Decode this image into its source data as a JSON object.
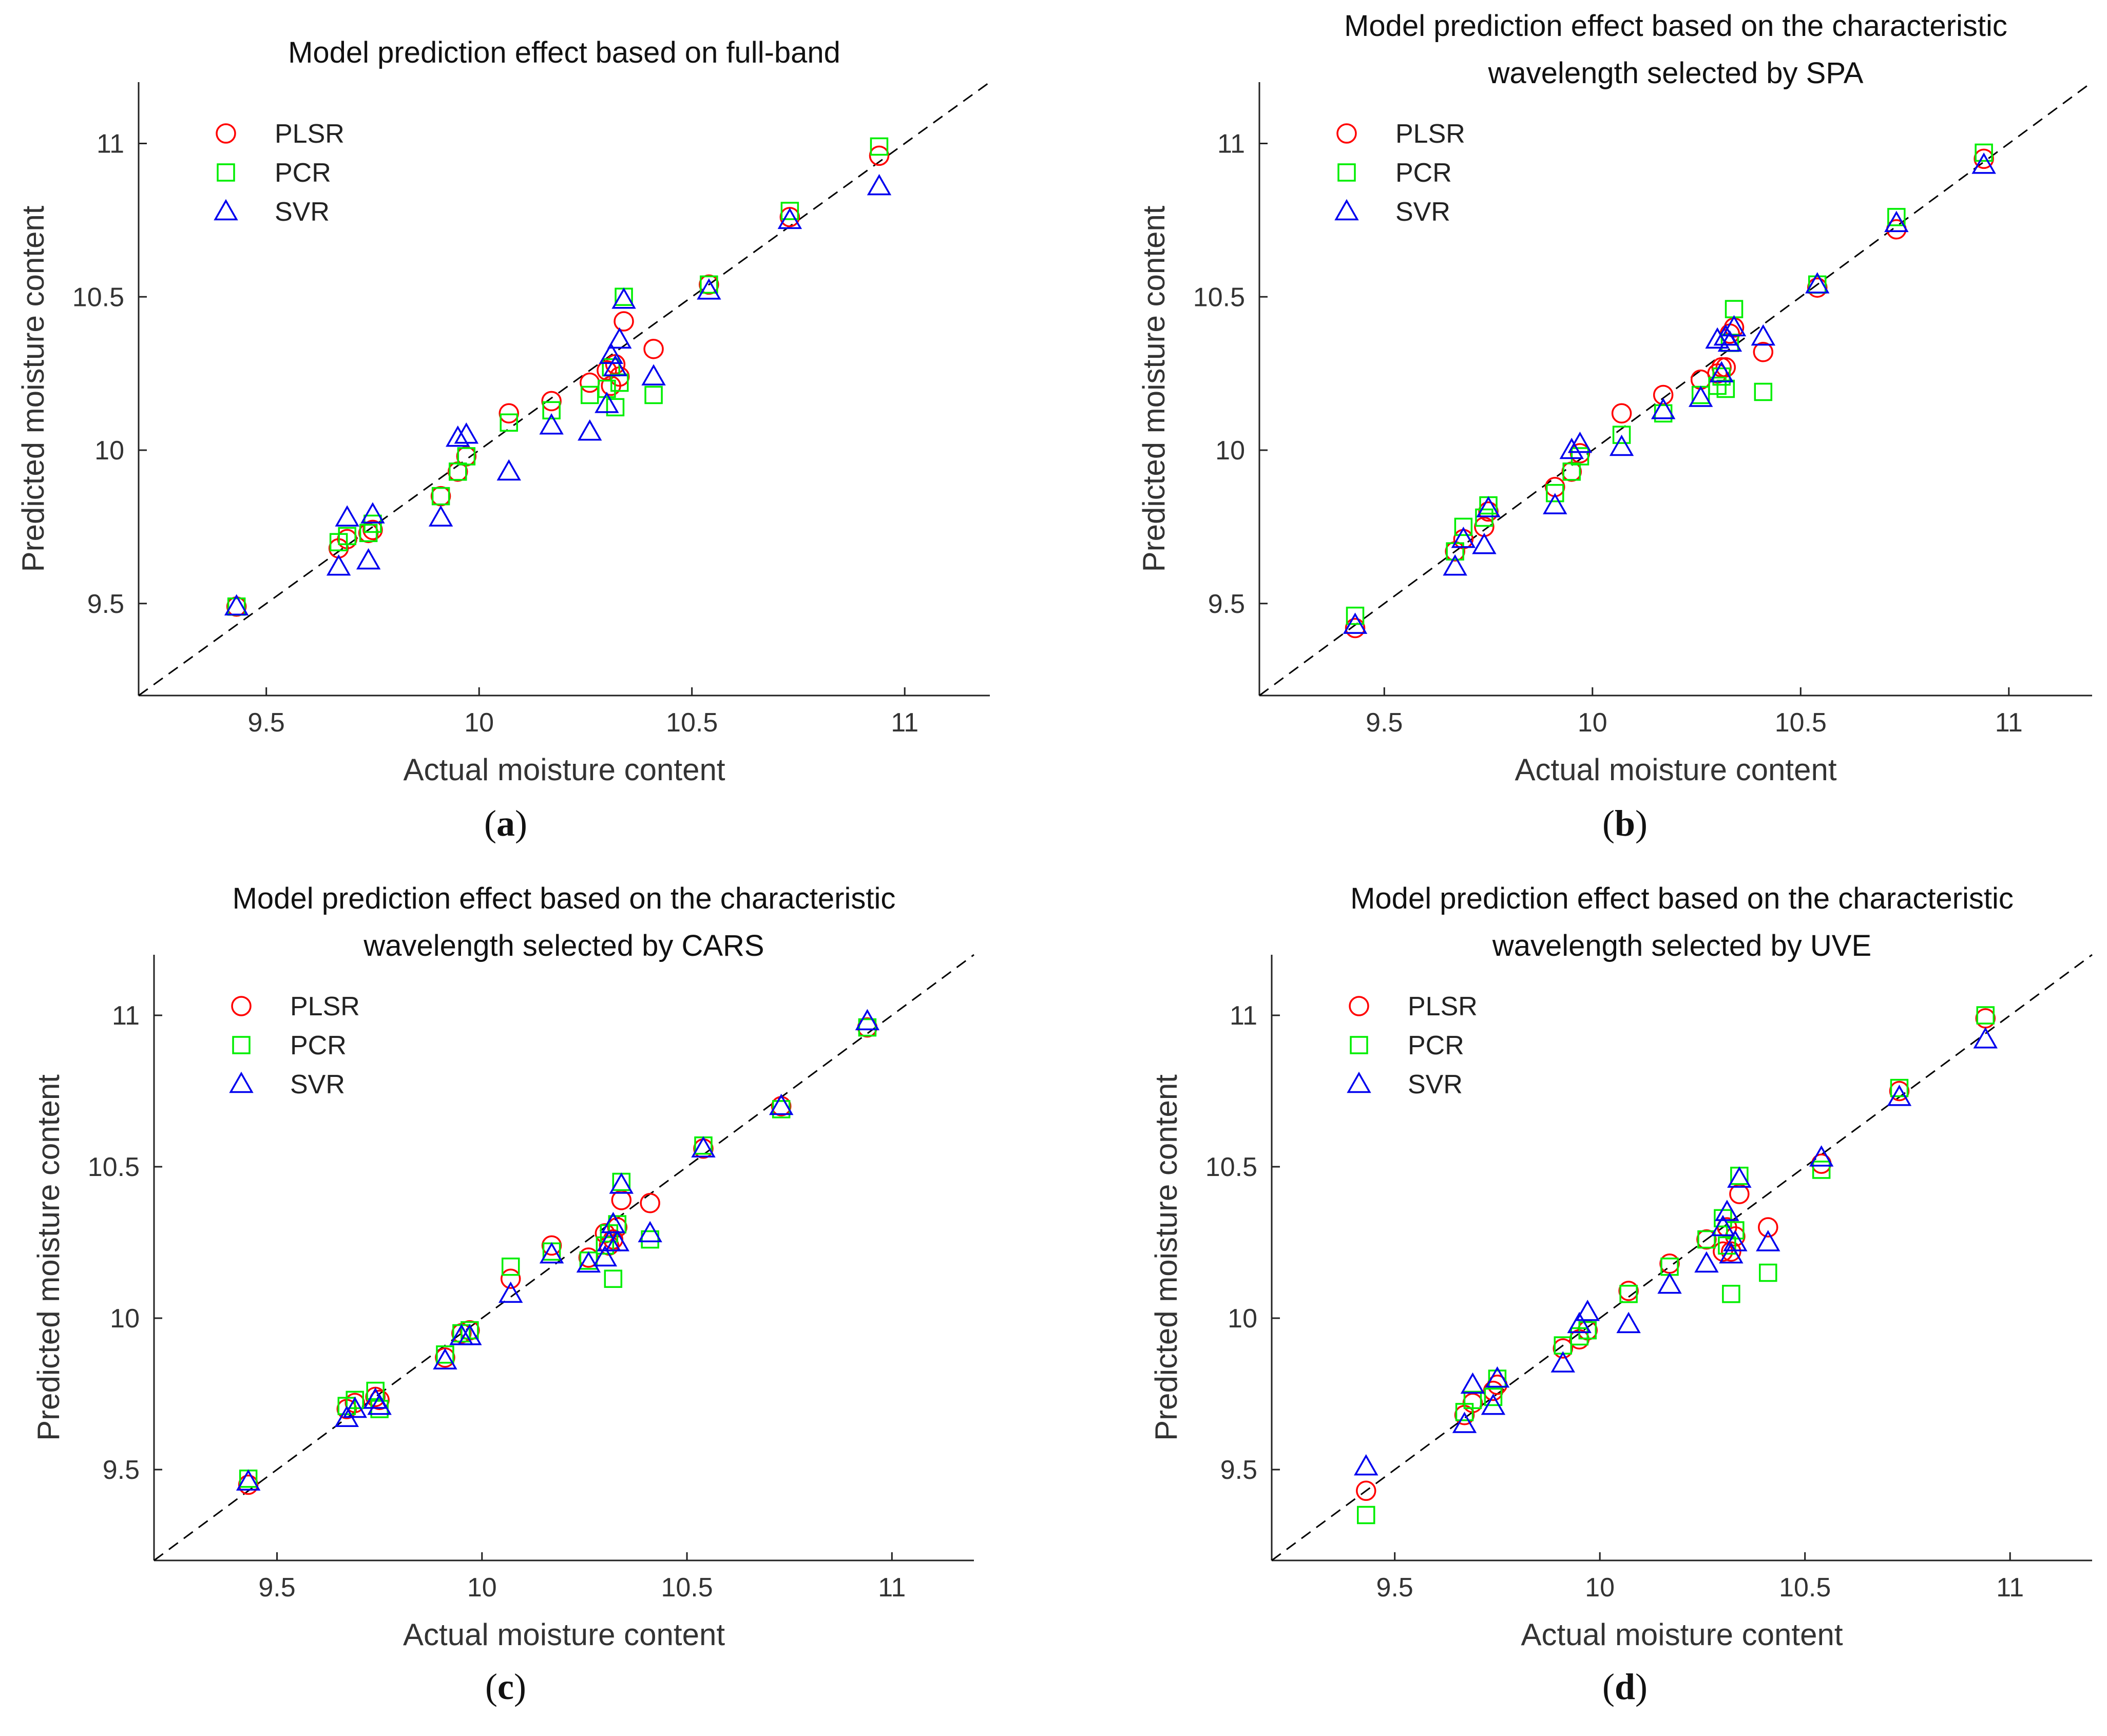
{
  "chart_data": [
    {
      "panel_label": "(a)",
      "type": "scatter",
      "title_lines": [
        "Model prediction effect based on full-band"
      ],
      "xlabel": "Actual moisture content",
      "ylabel": "Predicted moisture content",
      "xlim": [
        9.2,
        11.2
      ],
      "ylim": [
        9.2,
        11.2
      ],
      "xticks": [
        9.5,
        10,
        10.5,
        11
      ],
      "yticks": [
        9.5,
        10,
        10.5,
        11
      ],
      "xtick_labels": [
        "9.5",
        "10",
        "10.5",
        "11"
      ],
      "ytick_labels": [
        "9.5",
        "10",
        "10.5",
        "11"
      ],
      "reference_line": "y = x (dashed)",
      "legend_position": "top-left",
      "series": [
        {
          "name": "PLSR",
          "marker": "circle",
          "color": "#ff0000",
          "x": [
            9.43,
            9.67,
            9.69,
            9.74,
            9.75,
            9.91,
            9.95,
            9.97,
            10.07,
            10.17,
            10.26,
            10.3,
            10.31,
            10.32,
            10.33,
            10.34,
            10.41,
            10.54,
            10.73,
            10.94
          ],
          "y": [
            9.49,
            9.68,
            9.71,
            9.73,
            9.74,
            9.85,
            9.93,
            9.98,
            10.12,
            10.16,
            10.22,
            10.26,
            10.21,
            10.28,
            10.24,
            10.42,
            10.33,
            10.54,
            10.76,
            10.96
          ]
        },
        {
          "name": "PCR",
          "marker": "square",
          "color": "#00ee00",
          "x": [
            9.43,
            9.67,
            9.69,
            9.74,
            9.75,
            9.91,
            9.95,
            9.97,
            10.07,
            10.17,
            10.26,
            10.3,
            10.31,
            10.32,
            10.33,
            10.34,
            10.41,
            10.54,
            10.73,
            10.94
          ],
          "y": [
            9.49,
            9.7,
            9.72,
            9.73,
            9.76,
            9.85,
            9.93,
            9.98,
            10.09,
            10.13,
            10.18,
            10.2,
            10.27,
            10.14,
            10.22,
            10.5,
            10.18,
            10.54,
            10.78,
            10.99
          ]
        },
        {
          "name": "SVR",
          "marker": "triangle",
          "color": "#0000ee",
          "x": [
            9.43,
            9.67,
            9.69,
            9.74,
            9.75,
            9.91,
            9.95,
            9.97,
            10.07,
            10.17,
            10.26,
            10.3,
            10.31,
            10.32,
            10.33,
            10.34,
            10.41,
            10.54,
            10.73,
            10.94
          ],
          "y": [
            9.49,
            9.62,
            9.78,
            9.64,
            9.79,
            9.78,
            10.04,
            10.05,
            9.93,
            10.08,
            10.06,
            10.15,
            10.31,
            10.27,
            10.36,
            10.49,
            10.24,
            10.52,
            10.75,
            10.86
          ]
        }
      ]
    },
    {
      "panel_label": "(b)",
      "type": "scatter",
      "title_lines": [
        "Model prediction effect based on the characteristic",
        "wavelength selected by SPA"
      ],
      "xlabel": "Actual moisture content",
      "ylabel": "Predicted moisture content",
      "xlim": [
        9.2,
        11.2
      ],
      "ylim": [
        9.2,
        11.2
      ],
      "xticks": [
        9.5,
        10,
        10.5,
        11
      ],
      "yticks": [
        9.5,
        10,
        10.5,
        11
      ],
      "xtick_labels": [
        "9.5",
        "10",
        "10.5",
        "11"
      ],
      "ytick_labels": [
        "9.5",
        "10",
        "10.5",
        "11"
      ],
      "reference_line": "y = x (dashed)",
      "legend_position": "top-left",
      "series": [
        {
          "name": "PLSR",
          "marker": "circle",
          "color": "#ff0000",
          "x": [
            9.43,
            9.67,
            9.69,
            9.74,
            9.75,
            9.91,
            9.95,
            9.97,
            10.07,
            10.17,
            10.26,
            10.3,
            10.31,
            10.32,
            10.33,
            10.34,
            10.41,
            10.54,
            10.73,
            10.94
          ],
          "y": [
            9.42,
            9.67,
            9.71,
            9.75,
            9.8,
            9.88,
            9.93,
            9.99,
            10.12,
            10.18,
            10.23,
            10.25,
            10.27,
            10.27,
            10.38,
            10.4,
            10.32,
            10.53,
            10.72,
            10.95
          ]
        },
        {
          "name": "PCR",
          "marker": "square",
          "color": "#00ee00",
          "x": [
            9.43,
            9.67,
            9.69,
            9.74,
            9.75,
            9.91,
            9.95,
            9.97,
            10.07,
            10.17,
            10.26,
            10.3,
            10.31,
            10.32,
            10.33,
            10.34,
            10.41,
            10.54,
            10.73,
            10.94
          ],
          "y": [
            9.46,
            9.67,
            9.75,
            9.78,
            9.82,
            9.86,
            9.93,
            9.98,
            10.05,
            10.12,
            10.18,
            10.21,
            10.24,
            10.2,
            10.35,
            10.46,
            10.19,
            10.54,
            10.76,
            10.97
          ]
        },
        {
          "name": "SVR",
          "marker": "triangle",
          "color": "#0000ee",
          "x": [
            9.43,
            9.67,
            9.69,
            9.74,
            9.75,
            9.91,
            9.95,
            9.97,
            10.07,
            10.17,
            10.26,
            10.3,
            10.31,
            10.32,
            10.33,
            10.34,
            10.41,
            10.54,
            10.73,
            10.94
          ],
          "y": [
            9.43,
            9.62,
            9.71,
            9.69,
            9.81,
            9.82,
            10.0,
            10.02,
            10.01,
            10.13,
            10.17,
            10.36,
            10.25,
            10.37,
            10.35,
            10.4,
            10.37,
            10.54,
            10.74,
            10.93
          ]
        }
      ]
    },
    {
      "panel_label": "(c)",
      "type": "scatter",
      "title_lines": [
        "Model prediction effect based on the characteristic",
        "wavelength selected by CARS"
      ],
      "xlabel": "Actual moisture content",
      "ylabel": "Predicted moisture content",
      "xlim": [
        9.2,
        11.2
      ],
      "ylim": [
        9.2,
        11.2
      ],
      "xticks": [
        9.5,
        10,
        10.5,
        11
      ],
      "yticks": [
        9.5,
        10,
        10.5,
        11
      ],
      "xtick_labels": [
        "9.5",
        "10",
        "10.5",
        "11"
      ],
      "ytick_labels": [
        "9.5",
        "10",
        "10.5",
        "11"
      ],
      "reference_line": "y = x (dashed)",
      "legend_position": "top-left",
      "series": [
        {
          "name": "PLSR",
          "marker": "circle",
          "color": "#ff0000",
          "x": [
            9.43,
            9.67,
            9.69,
            9.74,
            9.75,
            9.91,
            9.95,
            9.97,
            10.07,
            10.17,
            10.26,
            10.3,
            10.31,
            10.32,
            10.33,
            10.34,
            10.41,
            10.54,
            10.73,
            10.94
          ],
          "y": [
            9.45,
            9.7,
            9.72,
            9.74,
            9.73,
            9.87,
            9.95,
            9.96,
            10.13,
            10.24,
            10.2,
            10.28,
            10.24,
            10.26,
            10.3,
            10.39,
            10.38,
            10.56,
            10.7,
            10.96
          ]
        },
        {
          "name": "PCR",
          "marker": "square",
          "color": "#00ee00",
          "x": [
            9.43,
            9.67,
            9.69,
            9.74,
            9.75,
            9.91,
            9.95,
            9.97,
            10.07,
            10.17,
            10.26,
            10.3,
            10.31,
            10.32,
            10.33,
            10.34,
            10.41,
            10.54,
            10.73,
            10.94
          ],
          "y": [
            9.47,
            9.71,
            9.73,
            9.76,
            9.7,
            9.88,
            9.95,
            9.96,
            10.17,
            10.22,
            10.19,
            10.24,
            10.28,
            10.13,
            10.31,
            10.45,
            10.26,
            10.57,
            10.69,
            10.96
          ]
        },
        {
          "name": "SVR",
          "marker": "triangle",
          "color": "#0000ee",
          "x": [
            9.43,
            9.67,
            9.69,
            9.74,
            9.75,
            9.91,
            9.95,
            9.97,
            10.07,
            10.17,
            10.26,
            10.3,
            10.31,
            10.32,
            10.33,
            10.34,
            10.41,
            10.54,
            10.73,
            10.94
          ],
          "y": [
            9.46,
            9.67,
            9.7,
            9.73,
            9.71,
            9.86,
            9.94,
            9.94,
            10.08,
            10.21,
            10.18,
            10.2,
            10.25,
            10.31,
            10.25,
            10.44,
            10.28,
            10.56,
            10.7,
            10.98
          ]
        }
      ]
    },
    {
      "panel_label": "(d)",
      "type": "scatter",
      "title_lines": [
        "Model prediction effect based on the characteristic",
        "wavelength selected by UVE"
      ],
      "xlabel": "Actual moisture content",
      "ylabel": "Predicted moisture content",
      "xlim": [
        9.2,
        11.2
      ],
      "ylim": [
        9.2,
        11.2
      ],
      "xticks": [
        9.5,
        10,
        10.5,
        11
      ],
      "yticks": [
        9.5,
        10,
        10.5,
        11
      ],
      "xtick_labels": [
        "9.5",
        "10",
        "10.5",
        "11"
      ],
      "ytick_labels": [
        "9.5",
        "10",
        "10.5",
        "11"
      ],
      "reference_line": "y = x (dashed)",
      "legend_position": "top-left",
      "series": [
        {
          "name": "PLSR",
          "marker": "circle",
          "color": "#ff0000",
          "x": [
            9.43,
            9.67,
            9.69,
            9.74,
            9.75,
            9.91,
            9.95,
            9.97,
            10.07,
            10.17,
            10.26,
            10.3,
            10.31,
            10.32,
            10.33,
            10.34,
            10.41,
            10.54,
            10.73,
            10.94
          ],
          "y": [
            9.43,
            9.68,
            9.72,
            9.76,
            9.78,
            9.9,
            9.93,
            9.96,
            10.09,
            10.18,
            10.26,
            10.22,
            10.3,
            10.22,
            10.27,
            10.41,
            10.3,
            10.51,
            10.75,
            10.99
          ]
        },
        {
          "name": "PCR",
          "marker": "square",
          "color": "#00ee00",
          "x": [
            9.43,
            9.67,
            9.69,
            9.74,
            9.75,
            9.91,
            9.95,
            9.97,
            10.07,
            10.17,
            10.26,
            10.3,
            10.31,
            10.32,
            10.33,
            10.34,
            10.41,
            10.54,
            10.73,
            10.94
          ],
          "y": [
            9.35,
            9.69,
            9.73,
            9.74,
            9.8,
            9.91,
            9.94,
            9.96,
            10.08,
            10.17,
            10.26,
            10.33,
            10.24,
            10.08,
            10.29,
            10.47,
            10.15,
            10.49,
            10.76,
            11.0
          ]
        },
        {
          "name": "SVR",
          "marker": "triangle",
          "color": "#0000ee",
          "x": [
            9.43,
            9.67,
            9.69,
            9.74,
            9.75,
            9.91,
            9.95,
            9.97,
            10.07,
            10.17,
            10.26,
            10.3,
            10.31,
            10.32,
            10.33,
            10.34,
            10.41,
            10.54,
            10.73,
            10.94
          ],
          "y": [
            9.51,
            9.65,
            9.78,
            9.71,
            9.8,
            9.85,
            9.98,
            10.02,
            9.98,
            10.11,
            10.18,
            10.3,
            10.35,
            10.21,
            10.25,
            10.46,
            10.25,
            10.53,
            10.73,
            10.92
          ]
        }
      ]
    }
  ]
}
